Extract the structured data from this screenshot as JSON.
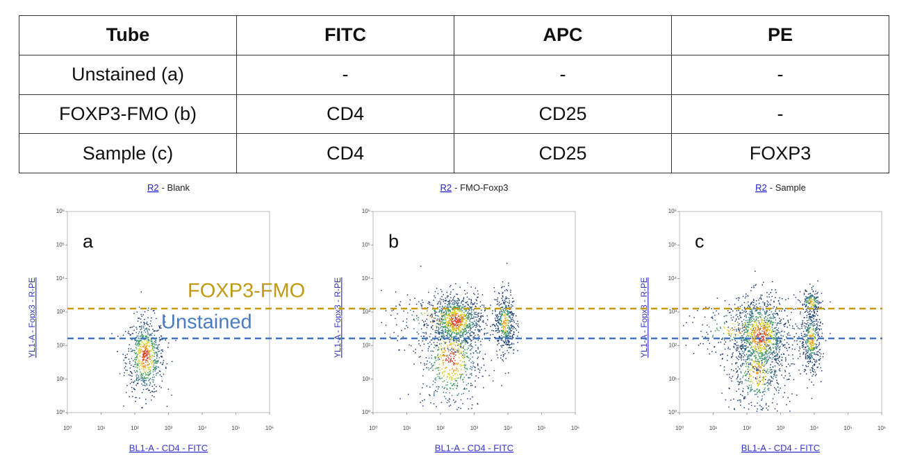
{
  "table": {
    "header": [
      "Tube",
      "FITC",
      "APC",
      "PE"
    ],
    "rows": [
      [
        "Unstained (a)",
        "-",
        "-",
        "-"
      ],
      [
        "FOXP3-FMO (b)",
        "CD4",
        "CD25",
        "-"
      ],
      [
        "Sample (c)",
        "CD4",
        "CD25",
        "FOXP3"
      ]
    ]
  },
  "ticks": [
    "10⁰",
    "10¹",
    "10²",
    "10³",
    "10⁴",
    "10⁵",
    "10⁶"
  ],
  "plots": [
    {
      "link": "R2",
      "title": "- Blank",
      "panel": "a",
      "y_label": "YL1-A - Fopx3 - R-PE",
      "x_label": "BL1-A - CD4 - FITC"
    },
    {
      "link": "R2",
      "title": "- FMO-Foxp3",
      "panel": "b",
      "y_label": "YL1-A - Fopx3 - R-PE",
      "x_label": "BL1-A - CD4 - FITC"
    },
    {
      "link": "R2",
      "title": "- Sample",
      "panel": "c",
      "y_label": "YL1-A - Fopx3 - R-PE",
      "x_label": "BL1-A - CD4 - FITC"
    }
  ],
  "annotations": [
    "FOXP3-FMO",
    "Unstained"
  ]
}
